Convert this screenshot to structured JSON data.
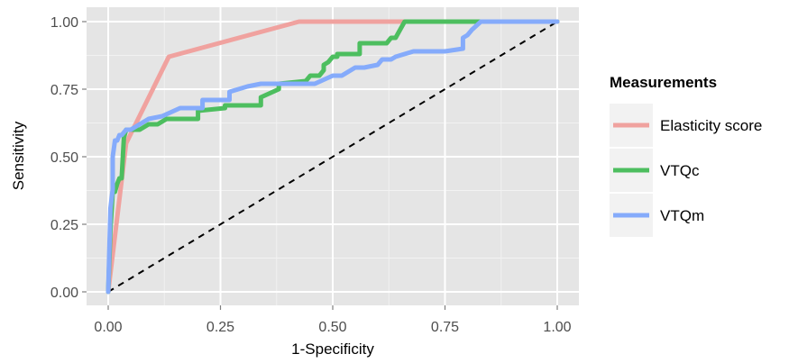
{
  "chart_data": {
    "type": "line",
    "title": "",
    "xlabel": "1-Specificity",
    "ylabel": "Sensitivity",
    "xlim": [
      0,
      1
    ],
    "ylim": [
      0,
      1
    ],
    "x_ticks": [
      "0.00",
      "0.25",
      "0.50",
      "0.75",
      "1.00"
    ],
    "y_ticks": [
      "0.00",
      "0.25",
      "0.50",
      "0.75",
      "1.00"
    ],
    "grid": true,
    "legend": {
      "title": "Measurements",
      "position": "right"
    },
    "reference_line": {
      "style": "dashed",
      "color": "#000000",
      "x": [
        0,
        1
      ],
      "y": [
        0,
        1
      ]
    },
    "series": [
      {
        "name": "Elasticity score",
        "color": "#F0A29F",
        "x": [
          0,
          0.04,
          0.135,
          0.425,
          0.44,
          1.0
        ],
        "y": [
          0,
          0.55,
          0.87,
          1.0,
          1.0,
          1.0
        ]
      },
      {
        "name": "VTQc",
        "color": "#4DBE5F",
        "x": [
          0,
          0.005,
          0.01,
          0.015,
          0.02,
          0.025,
          0.03,
          0.035,
          0.04,
          0.05,
          0.07,
          0.09,
          0.11,
          0.13,
          0.2,
          0.2,
          0.26,
          0.26,
          0.34,
          0.34,
          0.38,
          0.38,
          0.44,
          0.45,
          0.47,
          0.48,
          0.48,
          0.49,
          0.5,
          0.51,
          0.51,
          0.56,
          0.56,
          0.62,
          0.63,
          0.64,
          0.65,
          0.66,
          0.67,
          0.8,
          1.0
        ],
        "y": [
          0,
          0.23,
          0.37,
          0.37,
          0.4,
          0.42,
          0.42,
          0.57,
          0.6,
          0.6,
          0.6,
          0.62,
          0.62,
          0.64,
          0.64,
          0.67,
          0.68,
          0.69,
          0.69,
          0.72,
          0.75,
          0.77,
          0.78,
          0.8,
          0.8,
          0.82,
          0.84,
          0.85,
          0.87,
          0.87,
          0.88,
          0.88,
          0.92,
          0.92,
          0.94,
          0.94,
          0.97,
          1.0,
          1.0,
          1.0,
          1.0
        ]
      },
      {
        "name": "VTQm",
        "color": "#85ABFB",
        "x": [
          0,
          0.005,
          0.01,
          0.01,
          0.015,
          0.02,
          0.025,
          0.03,
          0.04,
          0.05,
          0.07,
          0.09,
          0.12,
          0.16,
          0.21,
          0.21,
          0.27,
          0.27,
          0.31,
          0.34,
          0.44,
          0.46,
          0.5,
          0.52,
          0.55,
          0.56,
          0.57,
          0.6,
          0.61,
          0.63,
          0.64,
          0.68,
          0.7,
          0.75,
          0.79,
          0.79,
          0.8,
          0.81,
          0.83,
          1.0
        ],
        "y": [
          0,
          0.31,
          0.38,
          0.5,
          0.56,
          0.56,
          0.58,
          0.58,
          0.6,
          0.6,
          0.62,
          0.64,
          0.65,
          0.68,
          0.68,
          0.71,
          0.71,
          0.74,
          0.76,
          0.77,
          0.77,
          0.77,
          0.8,
          0.8,
          0.83,
          0.83,
          0.83,
          0.84,
          0.86,
          0.86,
          0.87,
          0.89,
          0.89,
          0.89,
          0.9,
          0.94,
          0.95,
          0.97,
          1.0,
          1.0
        ]
      }
    ]
  }
}
